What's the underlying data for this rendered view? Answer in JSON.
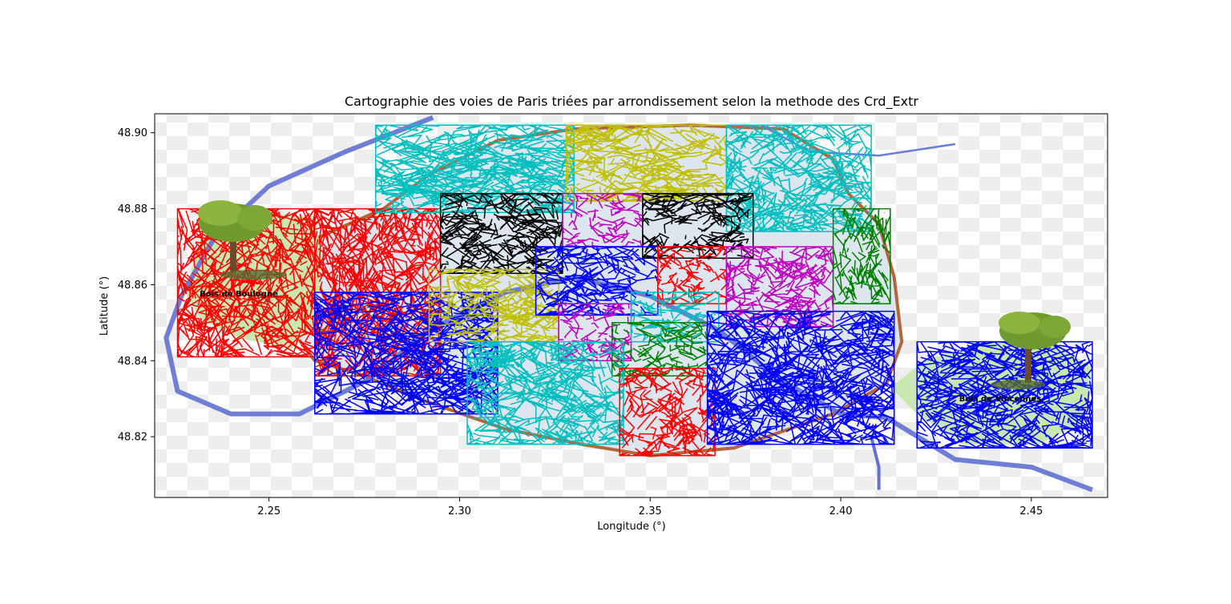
{
  "chart_data": {
    "type": "line",
    "title": "Cartographie des voies de Paris triées par arrondissement selon la methode des Crd_Extr",
    "xlabel": "Longitude (°)",
    "ylabel": "Latitude (°)",
    "xlim": [
      2.22,
      2.47
    ],
    "ylim": [
      48.804,
      48.905
    ],
    "xticks": [
      2.25,
      2.3,
      2.35,
      2.4,
      2.45
    ],
    "yticks": [
      48.82,
      48.84,
      48.86,
      48.88,
      48.9
    ],
    "xtick_labels": [
      "2.25",
      "2.30",
      "2.35",
      "2.40",
      "2.45"
    ],
    "ytick_labels": [
      "48.82",
      "48.84",
      "48.86",
      "48.88",
      "48.90"
    ],
    "grid": false,
    "legend": "none",
    "background_annotations": [
      "Bois de Boulogne",
      "Bois de Vincennes"
    ],
    "series_colors": {
      "red": "#ff0000",
      "blue": "#0000ff",
      "cyan": "#00bfbf",
      "yellow": "#bfbf00",
      "black": "#000000",
      "magenta": "#bf00bf",
      "green": "#008000"
    },
    "regions": [
      {
        "color": "red",
        "lon": [
          2.226,
          2.262
        ],
        "lat": [
          48.841,
          48.88
        ],
        "seed": 11
      },
      {
        "color": "red",
        "lon": [
          2.262,
          2.295
        ],
        "lat": [
          48.836,
          48.88
        ],
        "seed": 12
      },
      {
        "color": "blue",
        "lon": [
          2.262,
          2.31
        ],
        "lat": [
          48.826,
          48.858
        ],
        "seed": 13
      },
      {
        "color": "cyan",
        "lon": [
          2.278,
          2.33
        ],
        "lat": [
          48.879,
          48.902
        ],
        "seed": 14
      },
      {
        "color": "yellow",
        "lon": [
          2.328,
          2.37
        ],
        "lat": [
          48.882,
          48.902
        ],
        "seed": 15
      },
      {
        "color": "cyan",
        "lon": [
          2.37,
          2.408
        ],
        "lat": [
          48.874,
          48.902
        ],
        "seed": 16
      },
      {
        "color": "black",
        "lon": [
          2.295,
          2.327
        ],
        "lat": [
          48.863,
          48.884
        ],
        "seed": 17
      },
      {
        "color": "magenta",
        "lon": [
          2.327,
          2.348
        ],
        "lat": [
          48.87,
          48.884
        ],
        "seed": 18
      },
      {
        "color": "black",
        "lon": [
          2.348,
          2.377
        ],
        "lat": [
          48.867,
          48.884
        ],
        "seed": 19
      },
      {
        "color": "yellow",
        "lon": [
          2.292,
          2.326
        ],
        "lat": [
          48.845,
          48.864
        ],
        "seed": 20
      },
      {
        "color": "blue",
        "lon": [
          2.32,
          2.352
        ],
        "lat": [
          48.852,
          48.87
        ],
        "seed": 21
      },
      {
        "color": "red",
        "lon": [
          2.352,
          2.37
        ],
        "lat": [
          48.855,
          48.87
        ],
        "seed": 22
      },
      {
        "color": "magenta",
        "lon": [
          2.37,
          2.398
        ],
        "lat": [
          48.849,
          48.87
        ],
        "seed": 23
      },
      {
        "color": "green",
        "lon": [
          2.398,
          2.413
        ],
        "lat": [
          48.855,
          48.88
        ],
        "seed": 24
      },
      {
        "color": "magenta",
        "lon": [
          2.326,
          2.345
        ],
        "lat": [
          48.84,
          48.855
        ],
        "seed": 25
      },
      {
        "color": "cyan",
        "lon": [
          2.345,
          2.368
        ],
        "lat": [
          48.845,
          48.858
        ],
        "seed": 26
      },
      {
        "color": "green",
        "lon": [
          2.34,
          2.365
        ],
        "lat": [
          48.836,
          48.85
        ],
        "seed": 27
      },
      {
        "color": "cyan",
        "lon": [
          2.302,
          2.343
        ],
        "lat": [
          48.818,
          48.845
        ],
        "seed": 28
      },
      {
        "color": "red",
        "lon": [
          2.342,
          2.367
        ],
        "lat": [
          48.815,
          48.838
        ],
        "seed": 29
      },
      {
        "color": "blue",
        "lon": [
          2.365,
          2.414
        ],
        "lat": [
          48.818,
          48.853
        ],
        "seed": 30
      },
      {
        "color": "blue",
        "lon": [
          2.42,
          2.466
        ],
        "lat": [
          48.817,
          48.845
        ],
        "seed": 31
      }
    ]
  }
}
